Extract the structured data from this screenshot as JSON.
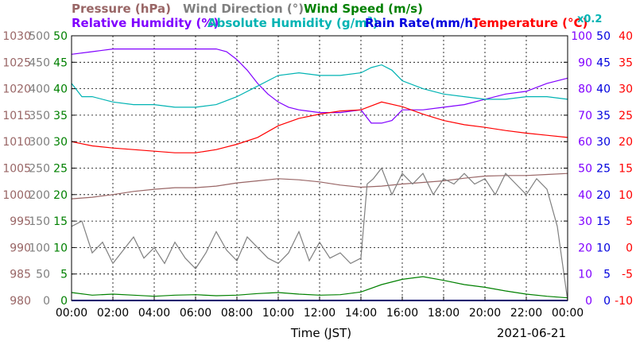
{
  "chart_data": {
    "type": "line",
    "date": "2021-06-21",
    "xlabel": "Time (JST)",
    "xticks": [
      "00:00",
      "02:00",
      "04:00",
      "06:00",
      "08:00",
      "10:00",
      "12:00",
      "14:00",
      "16:00",
      "18:00",
      "20:00",
      "22:00",
      "00:00"
    ],
    "xlim": [
      0,
      24
    ],
    "grid": true,
    "legend": {
      "row1": [
        {
          "text": "Pressure (hPa)",
          "color": "#996666"
        },
        {
          "text": "Wind Direction (°)",
          "color": "#808080"
        },
        {
          "text": "Wind Speed (m/s)",
          "color": "#008000"
        }
      ],
      "row2": [
        {
          "text": "Relative Humidity (%)",
          "color": "#8000ff"
        },
        {
          "text": "Absolute Humidity (g/m",
          "sup": "3",
          "close": ")",
          "color": "#00b3b3"
        },
        {
          "text": "Rain Rate(mm/h)",
          "color": "#0000dd"
        },
        {
          "text": "Temperature (°C)",
          "color": "#ff0000"
        }
      ],
      "extra": {
        "text": "x0.2",
        "color": "#00b3b3"
      }
    },
    "axes": {
      "pressure": {
        "color": "#996666",
        "range": [
          980,
          1030
        ],
        "ticks": [
          "980",
          "985",
          "990",
          "995",
          "1000",
          "1005",
          "1010",
          "1015",
          "1020",
          "1025",
          "1030"
        ]
      },
      "wind_direction": {
        "color": "#808080",
        "range": [
          0,
          500
        ],
        "ticks": [
          "0",
          "50",
          "100",
          "150",
          "200",
          "250",
          "300",
          "350",
          "400",
          "450",
          "500"
        ]
      },
      "wind_speed": {
        "color": "#008000",
        "range": [
          0,
          50
        ],
        "ticks": [
          "0",
          "5",
          "10",
          "15",
          "20",
          "25",
          "30",
          "35",
          "40",
          "45",
          "50"
        ]
      },
      "relative_humidity": {
        "color": "#8000ff",
        "range": [
          0,
          100
        ],
        "ticks": [
          "0",
          "10",
          "20",
          "30",
          "40",
          "50",
          "60",
          "70",
          "80",
          "90",
          "100"
        ]
      },
      "rain_rate": {
        "color": "#0000dd",
        "range": [
          0,
          50
        ],
        "ticks": [
          "0",
          "5",
          "10",
          "15",
          "20",
          "25",
          "30",
          "35",
          "40",
          "45",
          "50"
        ]
      },
      "temperature": {
        "color": "#ff0000",
        "range": [
          -10,
          40
        ],
        "ticks": [
          "-10",
          "-5",
          "0",
          "5",
          "10",
          "15",
          "20",
          "25",
          "30",
          "35",
          "40"
        ]
      }
    },
    "series": [
      {
        "name": "Pressure (hPa)",
        "axis": "pressure",
        "color": "#996666",
        "x": [
          0,
          1,
          2,
          3,
          4,
          5,
          6,
          7,
          8,
          9,
          10,
          11,
          12,
          13,
          14,
          15,
          16,
          17,
          18,
          19,
          20,
          21,
          22,
          23,
          24
        ],
        "y": [
          999.2,
          999.5,
          1000.0,
          1000.6,
          1001.0,
          1001.3,
          1001.3,
          1001.6,
          1002.2,
          1002.6,
          1003.0,
          1002.8,
          1002.4,
          1001.8,
          1001.4,
          1001.6,
          1002.0,
          1002.3,
          1002.6,
          1003.1,
          1003.5,
          1003.6,
          1003.6,
          1003.8,
          1004.0
        ]
      },
      {
        "name": "Wind Direction (°)",
        "axis": "wind_direction",
        "color": "#808080",
        "x": [
          0,
          0.5,
          1,
          1.5,
          2,
          2.5,
          3,
          3.5,
          4,
          4.5,
          5,
          5.5,
          6,
          6.5,
          7,
          7.5,
          8,
          8.5,
          9,
          9.5,
          10,
          10.5,
          11,
          11.5,
          12,
          12.5,
          13,
          13.5,
          14,
          14.3,
          14.6,
          15,
          15.5,
          16,
          16.5,
          17,
          17.5,
          18,
          18.5,
          19,
          19.5,
          20,
          20.5,
          21,
          21.5,
          22,
          22.5,
          23,
          23.5,
          24
        ],
        "y": [
          140,
          150,
          90,
          110,
          70,
          95,
          120,
          80,
          100,
          70,
          110,
          80,
          60,
          90,
          130,
          95,
          75,
          120,
          100,
          80,
          70,
          90,
          130,
          75,
          110,
          80,
          90,
          70,
          80,
          220,
          230,
          250,
          200,
          240,
          220,
          240,
          200,
          230,
          220,
          240,
          220,
          230,
          200,
          240,
          220,
          200,
          230,
          210,
          140,
          0
        ]
      },
      {
        "name": "Wind Speed (m/s)",
        "axis": "wind_speed",
        "color": "#008000",
        "x": [
          0,
          1,
          2,
          3,
          4,
          5,
          6,
          7,
          8,
          9,
          10,
          11,
          12,
          13,
          14,
          15,
          16,
          17,
          18,
          19,
          20,
          21,
          22,
          23,
          24
        ],
        "y": [
          1.5,
          1.0,
          1.2,
          1.0,
          0.8,
          1.0,
          1.1,
          0.9,
          1.0,
          1.3,
          1.5,
          1.2,
          1.0,
          1.1,
          1.6,
          3.0,
          4.0,
          4.5,
          3.8,
          3.0,
          2.5,
          1.8,
          1.2,
          0.8,
          0.5
        ]
      },
      {
        "name": "Relative Humidity (%)",
        "axis": "relative_humidity",
        "color": "#8000ff",
        "x": [
          0,
          1,
          2,
          3,
          4,
          5,
          6,
          7,
          7.5,
          8,
          8.5,
          9,
          9.5,
          10,
          10.5,
          11,
          12,
          13,
          14,
          14.5,
          15,
          15.5,
          16,
          17,
          18,
          19,
          20,
          21,
          22,
          23,
          24
        ],
        "y": [
          93,
          94,
          95,
          95,
          95,
          95,
          95,
          95,
          94,
          91,
          87,
          82,
          78,
          75,
          73,
          72,
          71,
          71,
          72,
          67,
          67,
          68,
          72,
          72,
          73,
          74,
          76,
          78,
          79,
          82,
          84
        ]
      },
      {
        "name": "Absolute Humidity (g/m3)",
        "axis": "relative_humidity",
        "color": "#00b3b3",
        "x": [
          0,
          0.5,
          1,
          2,
          3,
          4,
          5,
          6,
          7,
          8,
          9,
          10,
          11,
          12,
          13,
          14,
          14.5,
          15,
          15.5,
          16,
          17,
          18,
          19,
          20,
          21,
          22,
          23,
          24
        ],
        "y": [
          82,
          77,
          77,
          75,
          74,
          74,
          73,
          73,
          74,
          77,
          81,
          85,
          86,
          85,
          85,
          86,
          88,
          89,
          87,
          83,
          80,
          78,
          77,
          76,
          76,
          77,
          77,
          76
        ]
      },
      {
        "name": "Rain Rate(mm/h)",
        "axis": "rain_rate",
        "color": "#0000dd",
        "x": [
          0,
          24
        ],
        "y": [
          0,
          0
        ]
      },
      {
        "name": "Temperature (°C)",
        "axis": "temperature",
        "color": "#ff0000",
        "x": [
          0,
          1,
          2,
          3,
          4,
          5,
          6,
          7,
          8,
          9,
          10,
          11,
          12,
          13,
          14,
          15,
          16,
          17,
          18,
          19,
          20,
          21,
          22,
          23,
          24
        ],
        "y": [
          20.0,
          19.2,
          18.8,
          18.5,
          18.2,
          17.9,
          17.9,
          18.5,
          19.5,
          20.8,
          23.0,
          24.4,
          25.2,
          25.8,
          26.0,
          27.5,
          26.6,
          25.2,
          24.0,
          23.2,
          22.7,
          22.1,
          21.6,
          21.2,
          20.8
        ]
      }
    ]
  }
}
